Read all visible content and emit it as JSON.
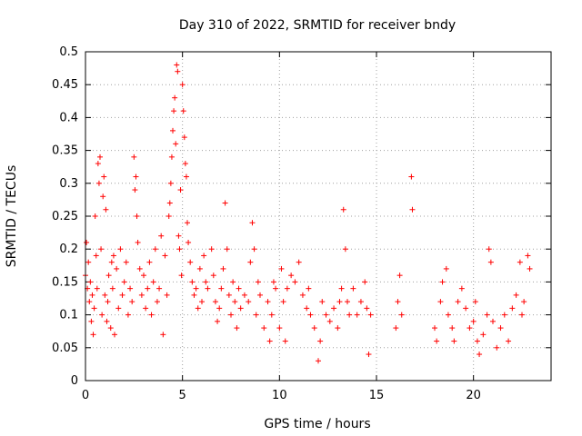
{
  "chart_data": {
    "type": "scatter",
    "title": "Day 310 of 2022, SRMTID for receiver bndy",
    "xlabel": "GPS time / hours",
    "ylabel": "SRMTID / TECUs",
    "xlim": [
      0,
      24
    ],
    "ylim": [
      0,
      0.5
    ],
    "grid": true,
    "marker": "plus",
    "color": "#ff0000",
    "xticks": [
      0,
      5,
      10,
      15,
      20
    ],
    "xtick_labels": [
      "0",
      "5",
      "10",
      "15",
      "20"
    ],
    "yticks": [
      0,
      0.05,
      0.1,
      0.15,
      0.2,
      0.25,
      0.3,
      0.35,
      0.4,
      0.45,
      0.5
    ],
    "ytick_labels": [
      "0",
      "0.05",
      "0.1",
      "0.15",
      "0.2",
      "0.25",
      "0.3",
      "0.35",
      "0.4",
      "0.45",
      "0.5"
    ],
    "series": [
      {
        "name": "SRMTID",
        "points": [
          [
            0.0,
            0.16
          ],
          [
            0.05,
            0.21
          ],
          [
            0.1,
            0.14
          ],
          [
            0.15,
            0.18
          ],
          [
            0.2,
            0.12
          ],
          [
            0.25,
            0.15
          ],
          [
            0.3,
            0.09
          ],
          [
            0.35,
            0.13
          ],
          [
            0.4,
            0.07
          ],
          [
            0.45,
            0.11
          ],
          [
            0.5,
            0.25
          ],
          [
            0.55,
            0.19
          ],
          [
            0.6,
            0.14
          ],
          [
            0.65,
            0.33
          ],
          [
            0.7,
            0.3
          ],
          [
            0.75,
            0.34
          ],
          [
            0.8,
            0.2
          ],
          [
            0.85,
            0.1
          ],
          [
            0.9,
            0.28
          ],
          [
            0.95,
            0.31
          ],
          [
            1.0,
            0.13
          ],
          [
            1.05,
            0.26
          ],
          [
            1.1,
            0.09
          ],
          [
            1.15,
            0.12
          ],
          [
            1.2,
            0.16
          ],
          [
            1.3,
            0.08
          ],
          [
            1.35,
            0.18
          ],
          [
            1.4,
            0.14
          ],
          [
            1.45,
            0.19
          ],
          [
            1.5,
            0.07
          ],
          [
            1.6,
            0.17
          ],
          [
            1.7,
            0.11
          ],
          [
            1.8,
            0.2
          ],
          [
            1.9,
            0.13
          ],
          [
            2.0,
            0.15
          ],
          [
            2.1,
            0.18
          ],
          [
            2.2,
            0.1
          ],
          [
            2.3,
            0.14
          ],
          [
            2.4,
            0.12
          ],
          [
            2.5,
            0.34
          ],
          [
            2.55,
            0.29
          ],
          [
            2.6,
            0.31
          ],
          [
            2.65,
            0.25
          ],
          [
            2.7,
            0.21
          ],
          [
            2.8,
            0.17
          ],
          [
            2.9,
            0.13
          ],
          [
            3.0,
            0.16
          ],
          [
            3.1,
            0.11
          ],
          [
            3.2,
            0.14
          ],
          [
            3.3,
            0.18
          ],
          [
            3.4,
            0.1
          ],
          [
            3.5,
            0.15
          ],
          [
            3.6,
            0.2
          ],
          [
            3.7,
            0.12
          ],
          [
            3.8,
            0.14
          ],
          [
            3.9,
            0.22
          ],
          [
            4.0,
            0.07
          ],
          [
            4.1,
            0.19
          ],
          [
            4.2,
            0.13
          ],
          [
            4.3,
            0.25
          ],
          [
            4.35,
            0.27
          ],
          [
            4.4,
            0.3
          ],
          [
            4.45,
            0.34
          ],
          [
            4.5,
            0.38
          ],
          [
            4.55,
            0.41
          ],
          [
            4.6,
            0.43
          ],
          [
            4.65,
            0.36
          ],
          [
            4.7,
            0.48
          ],
          [
            4.75,
            0.47
          ],
          [
            4.8,
            0.22
          ],
          [
            4.85,
            0.2
          ],
          [
            4.9,
            0.29
          ],
          [
            4.95,
            0.16
          ],
          [
            5.0,
            0.45
          ],
          [
            5.05,
            0.41
          ],
          [
            5.1,
            0.37
          ],
          [
            5.15,
            0.33
          ],
          [
            5.2,
            0.31
          ],
          [
            5.25,
            0.24
          ],
          [
            5.3,
            0.21
          ],
          [
            5.4,
            0.18
          ],
          [
            5.5,
            0.15
          ],
          [
            5.6,
            0.13
          ],
          [
            5.7,
            0.14
          ],
          [
            5.8,
            0.11
          ],
          [
            5.9,
            0.17
          ],
          [
            6.0,
            0.12
          ],
          [
            6.1,
            0.19
          ],
          [
            6.2,
            0.15
          ],
          [
            6.3,
            0.14
          ],
          [
            6.5,
            0.2
          ],
          [
            6.6,
            0.16
          ],
          [
            6.7,
            0.12
          ],
          [
            6.8,
            0.09
          ],
          [
            6.9,
            0.11
          ],
          [
            7.0,
            0.14
          ],
          [
            7.1,
            0.17
          ],
          [
            7.2,
            0.27
          ],
          [
            7.3,
            0.2
          ],
          [
            7.4,
            0.13
          ],
          [
            7.5,
            0.1
          ],
          [
            7.6,
            0.15
          ],
          [
            7.7,
            0.12
          ],
          [
            7.8,
            0.08
          ],
          [
            7.9,
            0.14
          ],
          [
            8.0,
            0.11
          ],
          [
            8.2,
            0.13
          ],
          [
            8.4,
            0.12
          ],
          [
            8.5,
            0.18
          ],
          [
            8.6,
            0.24
          ],
          [
            8.7,
            0.2
          ],
          [
            8.8,
            0.1
          ],
          [
            8.9,
            0.15
          ],
          [
            9.0,
            0.13
          ],
          [
            9.2,
            0.08
          ],
          [
            9.4,
            0.12
          ],
          [
            9.5,
            0.06
          ],
          [
            9.6,
            0.1
          ],
          [
            9.7,
            0.15
          ],
          [
            9.8,
            0.14
          ],
          [
            10.0,
            0.08
          ],
          [
            10.1,
            0.17
          ],
          [
            10.2,
            0.12
          ],
          [
            10.3,
            0.06
          ],
          [
            10.4,
            0.14
          ],
          [
            10.6,
            0.16
          ],
          [
            10.8,
            0.15
          ],
          [
            11.0,
            0.18
          ],
          [
            11.2,
            0.13
          ],
          [
            11.4,
            0.11
          ],
          [
            11.5,
            0.14
          ],
          [
            11.6,
            0.1
          ],
          [
            11.8,
            0.08
          ],
          [
            12.0,
            0.03
          ],
          [
            12.1,
            0.06
          ],
          [
            12.2,
            0.12
          ],
          [
            12.4,
            0.1
          ],
          [
            12.6,
            0.09
          ],
          [
            12.8,
            0.11
          ],
          [
            13.0,
            0.08
          ],
          [
            13.1,
            0.12
          ],
          [
            13.2,
            0.14
          ],
          [
            13.3,
            0.26
          ],
          [
            13.4,
            0.2
          ],
          [
            13.5,
            0.12
          ],
          [
            13.6,
            0.1
          ],
          [
            13.8,
            0.14
          ],
          [
            14.0,
            0.1
          ],
          [
            14.2,
            0.12
          ],
          [
            14.4,
            0.15
          ],
          [
            14.5,
            0.11
          ],
          [
            14.6,
            0.04
          ],
          [
            14.7,
            0.1
          ],
          [
            16.0,
            0.08
          ],
          [
            16.1,
            0.12
          ],
          [
            16.2,
            0.16
          ],
          [
            16.3,
            0.1
          ],
          [
            16.8,
            0.31
          ],
          [
            16.85,
            0.26
          ],
          [
            18.0,
            0.08
          ],
          [
            18.1,
            0.06
          ],
          [
            18.3,
            0.12
          ],
          [
            18.4,
            0.15
          ],
          [
            18.6,
            0.17
          ],
          [
            18.7,
            0.1
          ],
          [
            18.9,
            0.08
          ],
          [
            19.0,
            0.06
          ],
          [
            19.2,
            0.12
          ],
          [
            19.4,
            0.14
          ],
          [
            19.6,
            0.11
          ],
          [
            19.8,
            0.08
          ],
          [
            20.0,
            0.09
          ],
          [
            20.1,
            0.12
          ],
          [
            20.2,
            0.06
          ],
          [
            20.3,
            0.04
          ],
          [
            20.5,
            0.07
          ],
          [
            20.7,
            0.1
          ],
          [
            20.8,
            0.2
          ],
          [
            20.9,
            0.18
          ],
          [
            21.0,
            0.09
          ],
          [
            21.2,
            0.05
          ],
          [
            21.4,
            0.08
          ],
          [
            21.6,
            0.1
          ],
          [
            21.8,
            0.06
          ],
          [
            22.0,
            0.11
          ],
          [
            22.2,
            0.13
          ],
          [
            22.4,
            0.18
          ],
          [
            22.5,
            0.1
          ],
          [
            22.6,
            0.12
          ],
          [
            22.8,
            0.19
          ],
          [
            22.9,
            0.17
          ]
        ]
      }
    ]
  }
}
